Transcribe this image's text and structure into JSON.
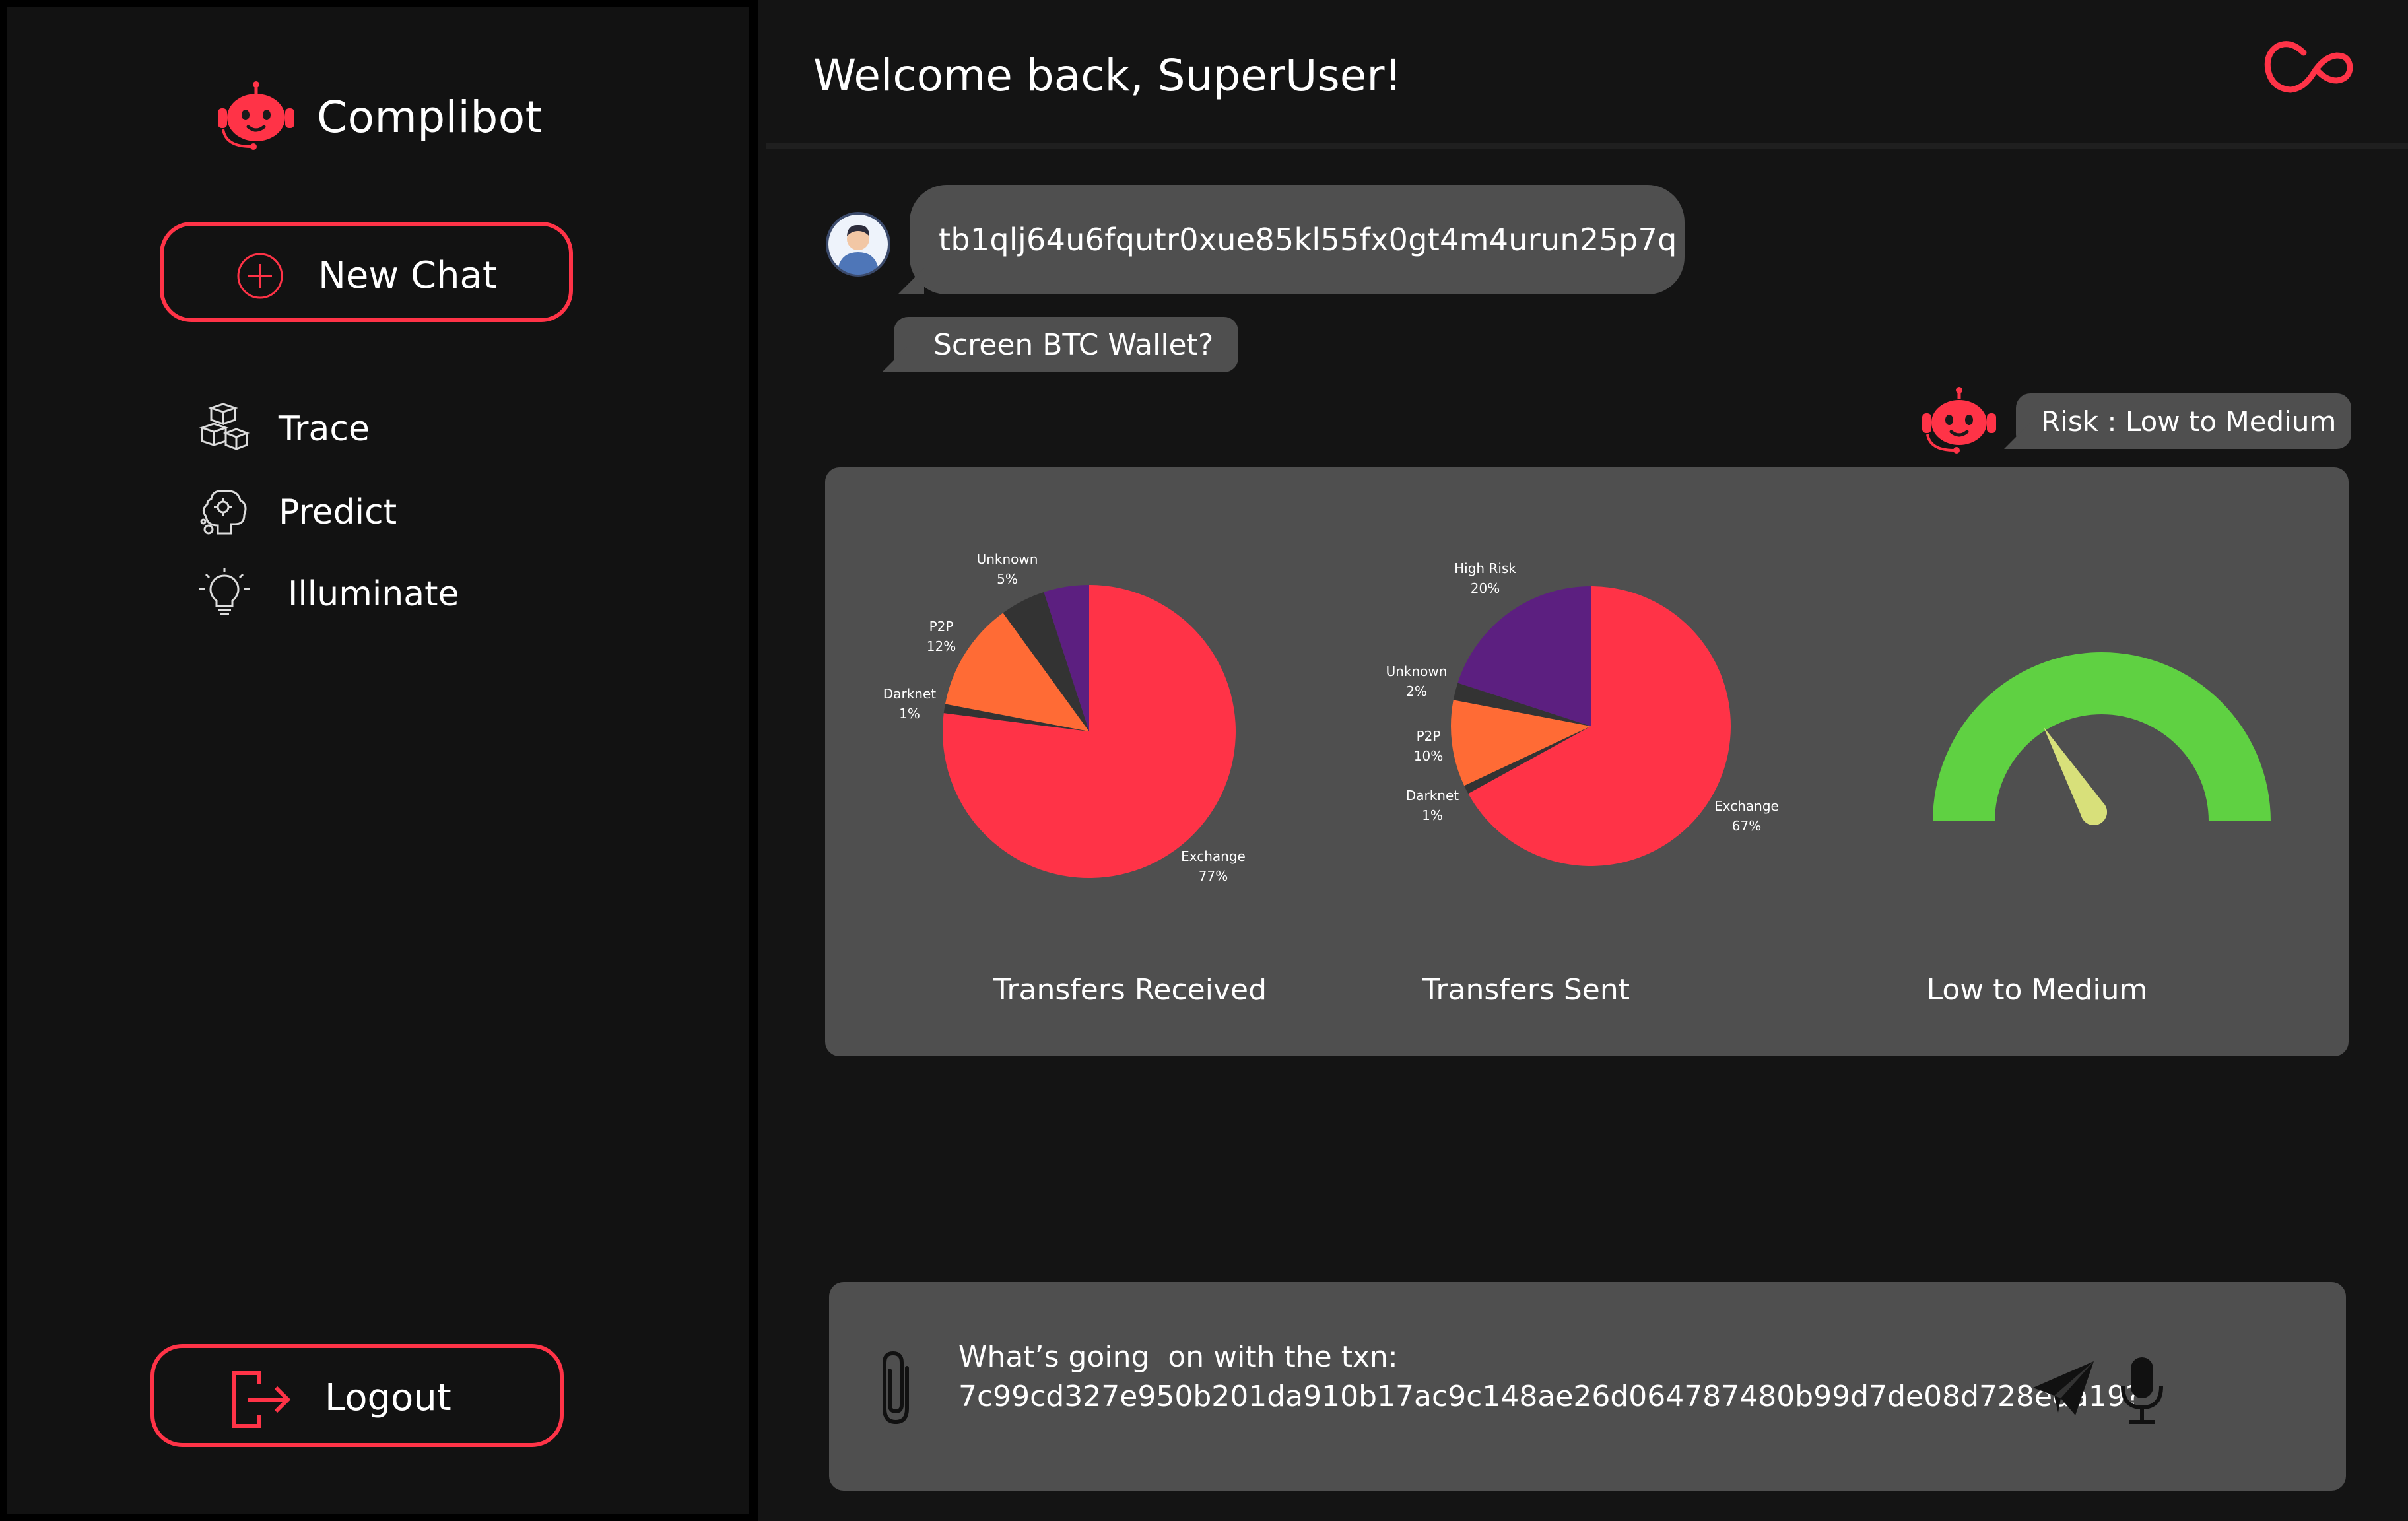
{
  "sidebar": {
    "brand": "Complibot",
    "new_chat": "New Chat",
    "items": [
      {
        "label": "Trace",
        "icon": "boxes-icon"
      },
      {
        "label": "Predict",
        "icon": "brain-gear-icon"
      },
      {
        "label": "Illuminate",
        "icon": "lightbulb-icon"
      }
    ],
    "logout": "Logout"
  },
  "header": {
    "welcome": "Welcome back, SuperUser!"
  },
  "chat": {
    "user_address": "tb1qlj64u6fqutr0xue85kl55fx0gt4m4urun25p7q",
    "user_prompt": "Screen BTC Wallet?",
    "bot_reply": "Risk : Low to Medium"
  },
  "colors": {
    "accent": "#ff3347",
    "exchange": "#ff3347",
    "p2p": "#ff6b35",
    "unknown": "#333333",
    "darknet": "#333333",
    "high_risk": "#5c1f80",
    "gauge": "#5fd142",
    "needle": "#d8e07a"
  },
  "chart_data": [
    {
      "type": "pie",
      "title": "Transfers Received",
      "slices": [
        {
          "label": "Exchange",
          "value": 77,
          "text": "77%"
        },
        {
          "label": "Darknet",
          "value": 1,
          "text": "1%"
        },
        {
          "label": "P2P",
          "value": 12,
          "text": "12%"
        },
        {
          "label": "Unknown",
          "value": 5,
          "text": "5%"
        },
        {
          "label": "",
          "value": 5,
          "text": ""
        }
      ]
    },
    {
      "type": "pie",
      "title": "Transfers  Sent",
      "slices": [
        {
          "label": "Exchange",
          "value": 67,
          "text": "67%"
        },
        {
          "label": "Darknet",
          "value": 1,
          "text": "1%"
        },
        {
          "label": "P2P",
          "value": 10,
          "text": "10%"
        },
        {
          "label": "Unknown",
          "value": 2,
          "text": "2%"
        },
        {
          "label": "High Risk",
          "value": 20,
          "text": "20%"
        }
      ]
    },
    {
      "type": "gauge",
      "title": "Low to Medium",
      "range": [
        0,
        100
      ],
      "value": 33
    }
  ],
  "input": {
    "text": "What’s going  on with the txn:\n7c99cd327e950b201da910b17ac9c148ae26d064787480b99d7de08d728eda19?"
  }
}
